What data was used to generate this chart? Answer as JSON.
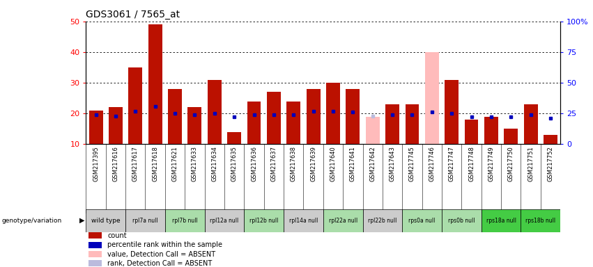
{
  "title": "GDS3061 / 7565_at",
  "samples": [
    "GSM217395",
    "GSM217616",
    "GSM217617",
    "GSM217618",
    "GSM217621",
    "GSM217633",
    "GSM217634",
    "GSM217635",
    "GSM217636",
    "GSM217637",
    "GSM217638",
    "GSM217639",
    "GSM217640",
    "GSM217641",
    "GSM217642",
    "GSM217643",
    "GSM217745",
    "GSM217746",
    "GSM217747",
    "GSM217748",
    "GSM217749",
    "GSM217750",
    "GSM217751",
    "GSM217752"
  ],
  "genotype_groups": [
    {
      "label": "wild type",
      "indices": [
        0,
        1
      ],
      "color": "#cccccc"
    },
    {
      "label": "rpl7a null",
      "indices": [
        2,
        3
      ],
      "color": "#cccccc"
    },
    {
      "label": "rpl7b null",
      "indices": [
        4,
        5
      ],
      "color": "#aaddaa"
    },
    {
      "label": "rpl12a null",
      "indices": [
        6,
        7
      ],
      "color": "#cccccc"
    },
    {
      "label": "rpl12b null",
      "indices": [
        8,
        9
      ],
      "color": "#aaddaa"
    },
    {
      "label": "rpl14a null",
      "indices": [
        10,
        11
      ],
      "color": "#cccccc"
    },
    {
      "label": "rpl22a null",
      "indices": [
        12,
        13
      ],
      "color": "#aaddaa"
    },
    {
      "label": "rpl22b null",
      "indices": [
        14,
        15
      ],
      "color": "#cccccc"
    },
    {
      "label": "rps0a null",
      "indices": [
        16,
        17
      ],
      "color": "#aaddaa"
    },
    {
      "label": "rps0b null",
      "indices": [
        18,
        19
      ],
      "color": "#aaddaa"
    },
    {
      "label": "rps18a null",
      "indices": [
        20,
        21
      ],
      "color": "#44cc44"
    },
    {
      "label": "rps18b null",
      "indices": [
        22,
        23
      ],
      "color": "#44cc44"
    }
  ],
  "count_values": [
    21,
    22,
    35,
    49,
    28,
    22,
    31,
    14,
    24,
    27,
    24,
    28,
    30,
    28,
    19,
    23,
    23,
    40,
    31,
    18,
    19,
    15,
    23,
    13
  ],
  "count_absent": [
    false,
    false,
    false,
    false,
    false,
    false,
    false,
    false,
    false,
    false,
    false,
    false,
    false,
    false,
    true,
    false,
    false,
    true,
    false,
    false,
    false,
    false,
    false,
    false
  ],
  "percentile_values": [
    24,
    23,
    27,
    31,
    25,
    24,
    25,
    22,
    24,
    24,
    24,
    27,
    27,
    26,
    23,
    24,
    24,
    26,
    25,
    22,
    22,
    22,
    24,
    21
  ],
  "percentile_absent": [
    false,
    false,
    false,
    false,
    false,
    false,
    false,
    false,
    false,
    false,
    false,
    false,
    false,
    false,
    true,
    false,
    false,
    false,
    false,
    false,
    false,
    false,
    false,
    false
  ],
  "ylim_left": [
    10,
    50
  ],
  "ylim_right": [
    0,
    100
  ],
  "yticks_left": [
    10,
    20,
    30,
    40,
    50
  ],
  "yticks_right": [
    0,
    25,
    50,
    75,
    100
  ],
  "bar_color_normal": "#bb1100",
  "bar_color_absent": "#ffbbbb",
  "dot_color_normal": "#0000bb",
  "dot_color_absent": "#bbbbdd",
  "legend_items": [
    {
      "color": "#bb1100",
      "label": "count"
    },
    {
      "color": "#0000bb",
      "label": "percentile rank within the sample"
    },
    {
      "color": "#ffbbbb",
      "label": "value, Detection Call = ABSENT"
    },
    {
      "color": "#bbbbdd",
      "label": "rank, Detection Call = ABSENT"
    }
  ]
}
